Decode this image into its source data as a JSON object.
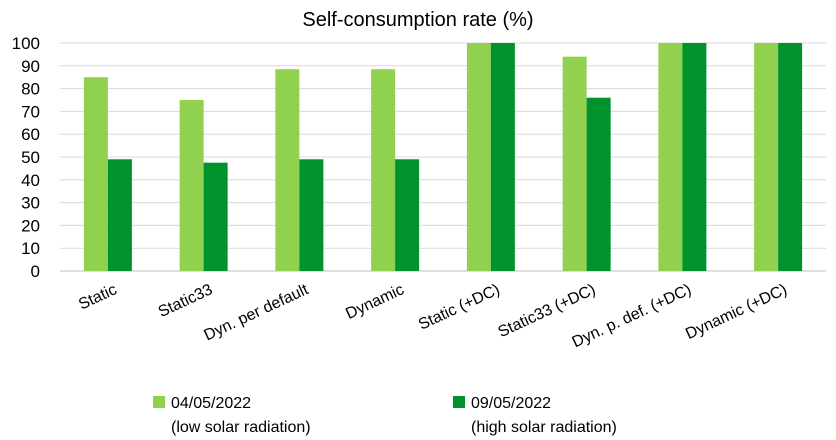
{
  "chart_data": {
    "type": "bar",
    "title": "Self-consumption rate (%)",
    "xlabel": "",
    "ylabel": "",
    "ylim": [
      0,
      100
    ],
    "y_ticks": [
      "0",
      "10",
      "20",
      "30",
      "40",
      "50",
      "60",
      "70",
      "80",
      "90",
      "100"
    ],
    "grid": true,
    "legend_position": "bottom",
    "categories": [
      "Static",
      "Static33",
      "Dyn. per default",
      "Dynamic",
      "Static (+DC)",
      "Static33 (+DC)",
      "Dyn. p. def. (+DC)",
      "Dynamic (+DC)"
    ],
    "series": [
      {
        "name": "04/05/2022",
        "name_line2": "(low solar radiation)",
        "color": "#92D050",
        "values": [
          85,
          75,
          88.5,
          88.5,
          100,
          94,
          100,
          100
        ]
      },
      {
        "name": "09/05/2022",
        "name_line2": "(high solar radiation)",
        "color": "#00922C",
        "values": [
          49,
          47.5,
          49,
          49,
          100,
          76,
          100,
          100
        ]
      }
    ]
  }
}
